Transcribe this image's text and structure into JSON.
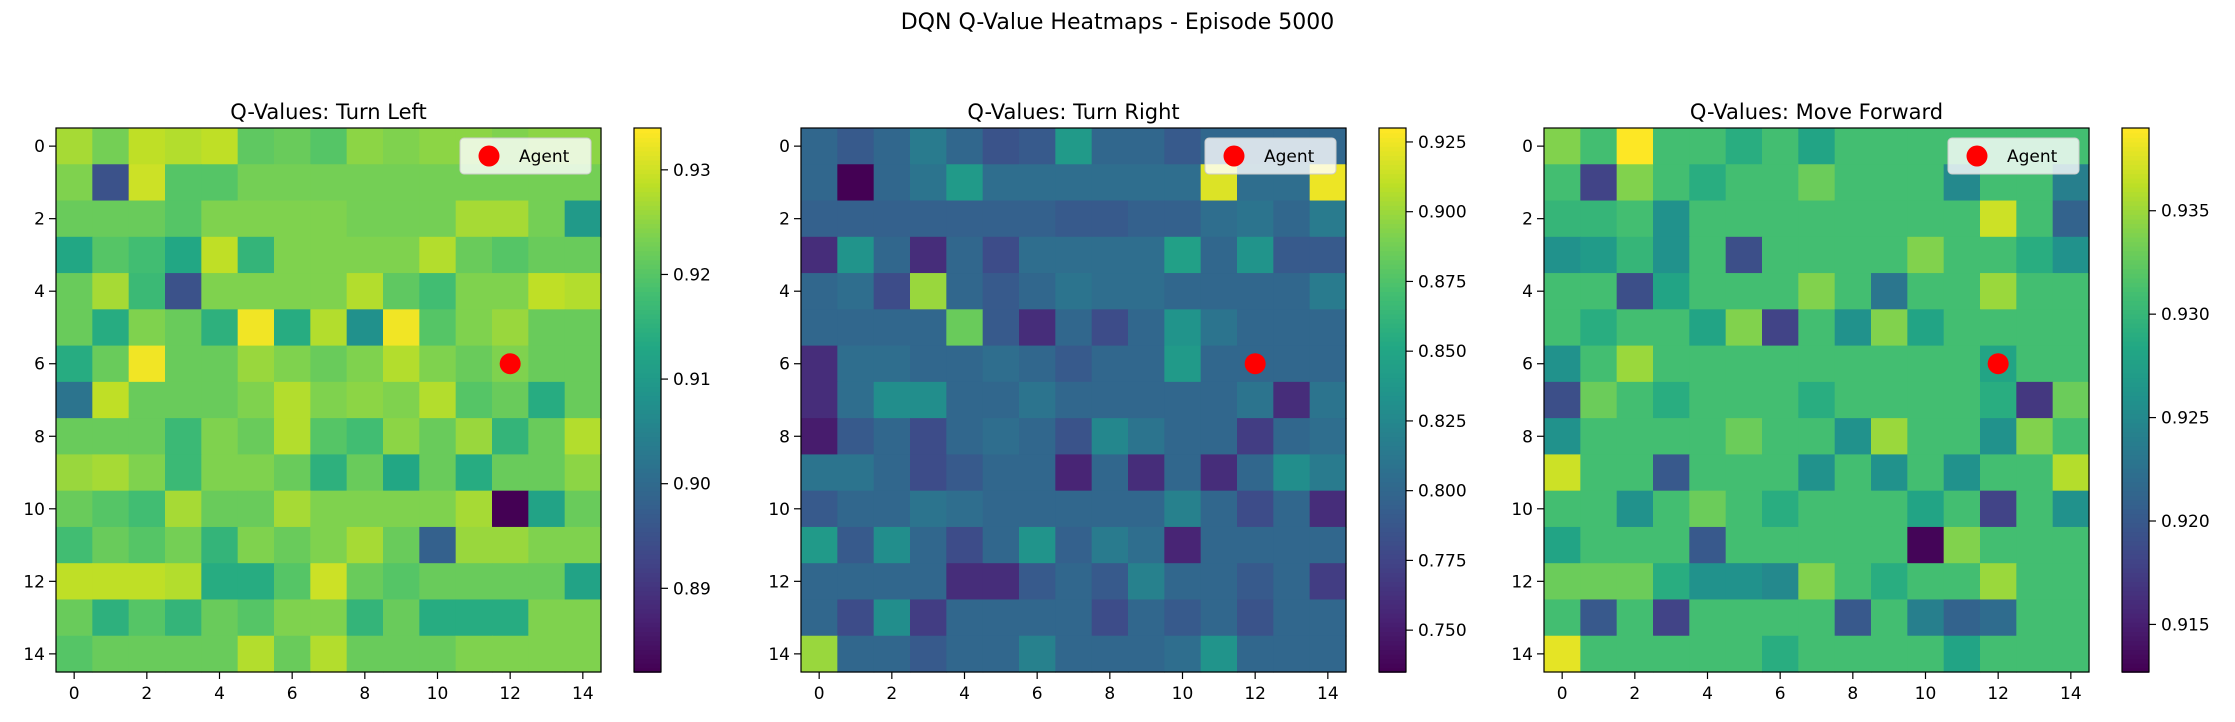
{
  "suptitle": "DQN Q-Value Heatmaps - Episode 5000",
  "chart_data": [
    {
      "type": "heatmap",
      "title": "Q-Values: Turn Left",
      "colormap": "viridis",
      "vmin": 0.882,
      "vmax": 0.934,
      "x_ticks": [
        0,
        2,
        4,
        6,
        8,
        10,
        12,
        14
      ],
      "y_ticks": [
        0,
        2,
        4,
        6,
        8,
        10,
        12,
        14
      ],
      "colorbar_ticks": [
        0.89,
        0.9,
        0.91,
        0.92,
        0.93
      ],
      "colorbar_labels": [
        "0.89",
        "0.90",
        "0.91",
        "0.92",
        "0.93"
      ],
      "legend": {
        "label": "Agent",
        "color": "#ff0000",
        "placement": "upper right"
      },
      "agent": {
        "x": 12,
        "y": 6
      },
      "values": [
        [
          0.927,
          0.923,
          0.929,
          0.928,
          0.929,
          0.921,
          0.922,
          0.92,
          0.925,
          0.924,
          0.925,
          0.925,
          0.924,
          0.925,
          0.925
        ],
        [
          0.924,
          0.895,
          0.93,
          0.92,
          0.92,
          0.923,
          0.923,
          0.923,
          0.923,
          0.923,
          0.923,
          0.923,
          0.923,
          0.923,
          0.923
        ],
        [
          0.922,
          0.922,
          0.922,
          0.92,
          0.924,
          0.924,
          0.924,
          0.924,
          0.923,
          0.923,
          0.923,
          0.927,
          0.927,
          0.923,
          0.91
        ],
        [
          0.913,
          0.92,
          0.918,
          0.913,
          0.929,
          0.916,
          0.924,
          0.924,
          0.924,
          0.924,
          0.928,
          0.922,
          0.92,
          0.922,
          0.922
        ],
        [
          0.922,
          0.927,
          0.917,
          0.895,
          0.924,
          0.924,
          0.924,
          0.924,
          0.928,
          0.921,
          0.918,
          0.924,
          0.924,
          0.929,
          0.928
        ],
        [
          0.922,
          0.914,
          0.924,
          0.922,
          0.915,
          0.933,
          0.914,
          0.928,
          0.908,
          0.933,
          0.92,
          0.924,
          0.926,
          0.922,
          0.922
        ],
        [
          0.914,
          0.922,
          0.933,
          0.922,
          0.922,
          0.926,
          0.924,
          0.922,
          0.924,
          0.928,
          0.924,
          0.922,
          0.924,
          0.922,
          0.922
        ],
        [
          0.902,
          0.929,
          0.922,
          0.922,
          0.922,
          0.924,
          0.928,
          0.924,
          0.925,
          0.924,
          0.928,
          0.92,
          0.922,
          0.914,
          0.922
        ],
        [
          0.922,
          0.922,
          0.922,
          0.917,
          0.924,
          0.922,
          0.928,
          0.92,
          0.918,
          0.925,
          0.922,
          0.926,
          0.916,
          0.922,
          0.928
        ],
        [
          0.926,
          0.927,
          0.924,
          0.917,
          0.924,
          0.924,
          0.922,
          0.915,
          0.922,
          0.913,
          0.922,
          0.914,
          0.922,
          0.922,
          0.925
        ],
        [
          0.922,
          0.92,
          0.918,
          0.927,
          0.922,
          0.922,
          0.927,
          0.924,
          0.924,
          0.924,
          0.924,
          0.927,
          0.882,
          0.912,
          0.922
        ],
        [
          0.918,
          0.922,
          0.92,
          0.923,
          0.916,
          0.924,
          0.922,
          0.924,
          0.927,
          0.922,
          0.898,
          0.926,
          0.926,
          0.924,
          0.924
        ],
        [
          0.929,
          0.929,
          0.929,
          0.928,
          0.914,
          0.914,
          0.92,
          0.93,
          0.922,
          0.92,
          0.922,
          0.922,
          0.922,
          0.922,
          0.912
        ],
        [
          0.922,
          0.915,
          0.92,
          0.916,
          0.922,
          0.92,
          0.924,
          0.924,
          0.916,
          0.922,
          0.914,
          0.914,
          0.914,
          0.924,
          0.924
        ],
        [
          0.92,
          0.922,
          0.922,
          0.922,
          0.922,
          0.928,
          0.922,
          0.928,
          0.922,
          0.922,
          0.922,
          0.924,
          0.924,
          0.924,
          0.924
        ]
      ]
    },
    {
      "type": "heatmap",
      "title": "Q-Values: Turn Right",
      "colormap": "viridis",
      "vmin": 0.735,
      "vmax": 0.93,
      "x_ticks": [
        0,
        2,
        4,
        6,
        8,
        10,
        12,
        14
      ],
      "y_ticks": [
        0,
        2,
        4,
        6,
        8,
        10,
        12,
        14
      ],
      "colorbar_ticks": [
        0.75,
        0.775,
        0.8,
        0.825,
        0.85,
        0.875,
        0.9,
        0.925
      ],
      "colorbar_labels": [
        "0.750",
        "0.775",
        "0.800",
        "0.825",
        "0.850",
        "0.875",
        "0.900",
        "0.925"
      ],
      "legend": {
        "label": "Agent",
        "color": "#ff0000",
        "placement": "upper right"
      },
      "agent": {
        "x": 12,
        "y": 6
      },
      "values": [
        [
          0.8,
          0.79,
          0.8,
          0.815,
          0.8,
          0.785,
          0.79,
          0.84,
          0.8,
          0.8,
          0.79,
          0.8,
          0.8,
          0.8,
          0.8
        ],
        [
          0.8,
          0.735,
          0.8,
          0.81,
          0.84,
          0.805,
          0.805,
          0.805,
          0.805,
          0.805,
          0.805,
          0.92,
          0.805,
          0.805,
          0.925
        ],
        [
          0.795,
          0.795,
          0.795,
          0.795,
          0.795,
          0.795,
          0.795,
          0.79,
          0.79,
          0.795,
          0.795,
          0.805,
          0.81,
          0.8,
          0.815
        ],
        [
          0.76,
          0.835,
          0.8,
          0.76,
          0.8,
          0.78,
          0.805,
          0.805,
          0.805,
          0.805,
          0.845,
          0.8,
          0.835,
          0.79,
          0.79
        ],
        [
          0.8,
          0.805,
          0.78,
          0.9,
          0.8,
          0.79,
          0.8,
          0.81,
          0.805,
          0.805,
          0.8,
          0.8,
          0.8,
          0.8,
          0.815
        ],
        [
          0.8,
          0.8,
          0.8,
          0.8,
          0.885,
          0.79,
          0.76,
          0.8,
          0.78,
          0.8,
          0.835,
          0.81,
          0.8,
          0.8,
          0.8
        ],
        [
          0.76,
          0.805,
          0.805,
          0.8,
          0.8,
          0.805,
          0.8,
          0.79,
          0.8,
          0.8,
          0.84,
          0.8,
          0.8,
          0.8,
          0.8
        ],
        [
          0.76,
          0.805,
          0.83,
          0.83,
          0.8,
          0.8,
          0.81,
          0.8,
          0.8,
          0.8,
          0.8,
          0.8,
          0.81,
          0.76,
          0.81
        ],
        [
          0.75,
          0.79,
          0.8,
          0.78,
          0.8,
          0.805,
          0.8,
          0.785,
          0.825,
          0.81,
          0.8,
          0.8,
          0.77,
          0.8,
          0.805
        ],
        [
          0.81,
          0.81,
          0.8,
          0.78,
          0.79,
          0.8,
          0.8,
          0.755,
          0.8,
          0.76,
          0.8,
          0.76,
          0.8,
          0.83,
          0.815
        ],
        [
          0.79,
          0.8,
          0.8,
          0.81,
          0.805,
          0.8,
          0.8,
          0.8,
          0.8,
          0.8,
          0.82,
          0.8,
          0.78,
          0.8,
          0.76
        ],
        [
          0.84,
          0.79,
          0.83,
          0.8,
          0.78,
          0.8,
          0.835,
          0.795,
          0.815,
          0.805,
          0.755,
          0.8,
          0.8,
          0.8,
          0.8
        ],
        [
          0.8,
          0.8,
          0.8,
          0.8,
          0.76,
          0.76,
          0.79,
          0.8,
          0.79,
          0.82,
          0.8,
          0.8,
          0.79,
          0.8,
          0.77
        ],
        [
          0.8,
          0.78,
          0.83,
          0.77,
          0.8,
          0.8,
          0.8,
          0.8,
          0.78,
          0.8,
          0.79,
          0.8,
          0.785,
          0.8,
          0.8
        ],
        [
          0.9,
          0.8,
          0.8,
          0.79,
          0.8,
          0.8,
          0.82,
          0.8,
          0.8,
          0.8,
          0.805,
          0.835,
          0.8,
          0.8,
          0.8
        ]
      ]
    },
    {
      "type": "heatmap",
      "title": "Q-Values: Move Forward",
      "colormap": "viridis",
      "vmin": 0.9127,
      "vmax": 0.939,
      "x_ticks": [
        0,
        2,
        4,
        6,
        8,
        10,
        12,
        14
      ],
      "y_ticks": [
        0,
        2,
        4,
        6,
        8,
        10,
        12,
        14
      ],
      "colorbar_ticks": [
        0.915,
        0.92,
        0.925,
        0.93,
        0.935
      ],
      "colorbar_labels": [
        "0.915",
        "0.920",
        "0.925",
        "0.930",
        "0.935"
      ],
      "legend": {
        "label": "Agent",
        "color": "#ff0000",
        "placement": "upper right"
      },
      "agent": {
        "x": 12,
        "y": 6
      },
      "values": [
        [
          0.934,
          0.931,
          0.939,
          0.931,
          0.931,
          0.929,
          0.931,
          0.928,
          0.931,
          0.931,
          0.931,
          0.931,
          0.931,
          0.931,
          0.931
        ],
        [
          0.931,
          0.918,
          0.934,
          0.931,
          0.929,
          0.931,
          0.931,
          0.933,
          0.931,
          0.931,
          0.931,
          0.925,
          0.931,
          0.931,
          0.924
        ],
        [
          0.93,
          0.93,
          0.931,
          0.926,
          0.931,
          0.931,
          0.931,
          0.931,
          0.931,
          0.931,
          0.931,
          0.931,
          0.937,
          0.931,
          0.921
        ],
        [
          0.926,
          0.927,
          0.93,
          0.926,
          0.931,
          0.919,
          0.931,
          0.931,
          0.931,
          0.931,
          0.934,
          0.931,
          0.931,
          0.929,
          0.926
        ],
        [
          0.931,
          0.931,
          0.919,
          0.928,
          0.931,
          0.931,
          0.931,
          0.934,
          0.931,
          0.923,
          0.931,
          0.931,
          0.935,
          0.931,
          0.931
        ],
        [
          0.931,
          0.929,
          0.931,
          0.931,
          0.928,
          0.934,
          0.918,
          0.931,
          0.926,
          0.934,
          0.928,
          0.931,
          0.931,
          0.931,
          0.931
        ],
        [
          0.926,
          0.931,
          0.935,
          0.931,
          0.931,
          0.931,
          0.931,
          0.931,
          0.931,
          0.931,
          0.931,
          0.931,
          0.928,
          0.931,
          0.931
        ],
        [
          0.919,
          0.933,
          0.931,
          0.929,
          0.931,
          0.931,
          0.931,
          0.929,
          0.931,
          0.931,
          0.931,
          0.931,
          0.929,
          0.917,
          0.933
        ],
        [
          0.926,
          0.931,
          0.931,
          0.931,
          0.931,
          0.933,
          0.931,
          0.931,
          0.926,
          0.935,
          0.931,
          0.931,
          0.926,
          0.934,
          0.931
        ],
        [
          0.937,
          0.931,
          0.931,
          0.92,
          0.931,
          0.931,
          0.931,
          0.926,
          0.931,
          0.926,
          0.931,
          0.926,
          0.931,
          0.931,
          0.936
        ],
        [
          0.931,
          0.931,
          0.926,
          0.931,
          0.933,
          0.931,
          0.929,
          0.931,
          0.931,
          0.931,
          0.928,
          0.931,
          0.918,
          0.931,
          0.926
        ],
        [
          0.928,
          0.931,
          0.931,
          0.931,
          0.92,
          0.931,
          0.931,
          0.931,
          0.931,
          0.931,
          0.913,
          0.934,
          0.931,
          0.931,
          0.931
        ],
        [
          0.933,
          0.933,
          0.933,
          0.929,
          0.926,
          0.926,
          0.925,
          0.934,
          0.931,
          0.929,
          0.931,
          0.931,
          0.935,
          0.931,
          0.931
        ],
        [
          0.931,
          0.92,
          0.931,
          0.918,
          0.931,
          0.931,
          0.931,
          0.931,
          0.92,
          0.931,
          0.924,
          0.921,
          0.922,
          0.931,
          0.931
        ],
        [
          0.938,
          0.931,
          0.931,
          0.931,
          0.931,
          0.931,
          0.929,
          0.931,
          0.931,
          0.931,
          0.931,
          0.928,
          0.931,
          0.931,
          0.931
        ]
      ]
    }
  ]
}
